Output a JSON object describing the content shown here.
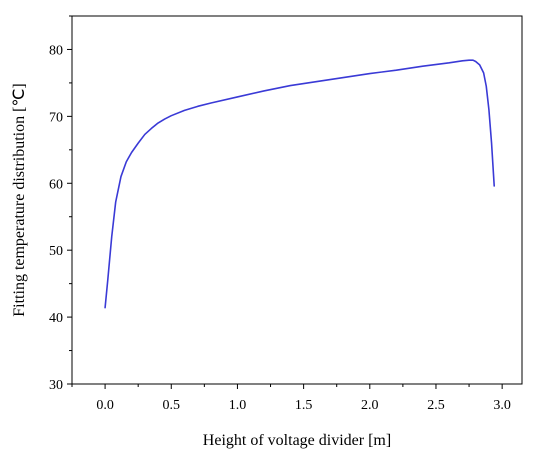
{
  "chart_data": {
    "type": "line",
    "xlabel": "Height of voltage divider [m]",
    "ylabel": "Fitting temperature distribution [℃]",
    "xlim": [
      -0.25,
      3.15
    ],
    "ylim": [
      30,
      85
    ],
    "x_ticks": [
      0.0,
      0.5,
      1.0,
      1.5,
      2.0,
      2.5,
      3.0
    ],
    "x_tick_labels": [
      "0.0",
      "0.5",
      "1.0",
      "1.5",
      "2.0",
      "2.5",
      "3.0"
    ],
    "y_ticks": [
      30,
      40,
      50,
      60,
      70,
      80
    ],
    "y_tick_labels": [
      "30",
      "40",
      "50",
      "60",
      "70",
      "80"
    ],
    "grid": false,
    "series": [
      {
        "color": "#3a3ad6",
        "x": [
          0.0,
          0.02,
          0.05,
          0.08,
          0.12,
          0.16,
          0.2,
          0.25,
          0.3,
          0.35,
          0.4,
          0.45,
          0.5,
          0.6,
          0.7,
          0.8,
          1.0,
          1.2,
          1.4,
          1.6,
          1.8,
          2.0,
          2.2,
          2.4,
          2.6,
          2.7,
          2.75,
          2.78,
          2.8,
          2.83,
          2.86,
          2.88,
          2.9,
          2.92,
          2.94
        ],
        "y": [
          41.4,
          45.5,
          52.0,
          57.2,
          61.0,
          63.2,
          64.6,
          66.0,
          67.3,
          68.2,
          69.0,
          69.6,
          70.1,
          70.9,
          71.5,
          72.0,
          72.9,
          73.8,
          74.6,
          75.2,
          75.8,
          76.4,
          76.9,
          77.5,
          78.0,
          78.3,
          78.4,
          78.4,
          78.2,
          77.7,
          76.5,
          74.5,
          71.0,
          66.0,
          59.6
        ]
      }
    ]
  }
}
